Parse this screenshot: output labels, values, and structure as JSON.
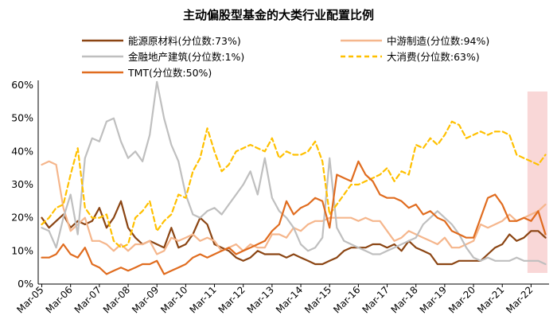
{
  "chart_data": {
    "type": "line",
    "title": "主动偏股型基金的大类行业配置比例",
    "xlabel": "",
    "ylabel": "",
    "ylim": [
      0,
      60
    ],
    "y_ticks": [
      "0%",
      "10%",
      "20%",
      "30%",
      "40%",
      "50%",
      "60%"
    ],
    "x_ticks": [
      "Mar-05",
      "Mar-06",
      "Mar-07",
      "Mar-08",
      "Mar-09",
      "Mar-10",
      "Mar-11",
      "Mar-12",
      "Mar-13",
      "Mar-14",
      "Mar-15",
      "Mar-16",
      "Mar-17",
      "Mar-18",
      "Mar-19",
      "Mar-20",
      "Mar-21",
      "Mar-22"
    ],
    "x_start": "2005-03",
    "x_step": "quarter",
    "grid": false,
    "legend_position": "top",
    "highlight": {
      "from_index": 68,
      "to_index": 70,
      "color": "#f9d7d7"
    },
    "series": [
      {
        "name": "能源原材料(分位数:73%)",
        "color": "#8b4513",
        "style": "solid",
        "values": [
          20,
          17,
          19,
          21,
          17,
          19,
          18,
          19,
          23,
          17,
          20,
          25,
          17,
          14,
          12,
          13,
          12,
          11,
          17,
          11,
          12,
          15,
          20,
          18,
          12,
          11,
          10,
          8,
          7,
          8,
          10,
          9,
          9,
          9,
          8,
          9,
          8,
          7,
          6,
          6,
          7,
          8,
          10,
          11,
          11,
          11,
          12,
          12,
          11,
          12,
          10,
          13,
          11,
          10,
          9,
          6,
          6,
          6,
          7,
          7,
          7,
          7,
          9,
          11,
          12,
          15,
          13,
          14,
          16,
          16,
          14
        ]
      },
      {
        "name": "中游制造(分位数:94%)",
        "color": "#f5b68c",
        "style": "solid",
        "values": [
          36,
          37,
          36,
          23,
          16,
          18,
          20,
          13,
          13,
          12,
          10,
          12,
          10,
          12,
          12,
          13,
          9,
          10,
          14,
          13,
          14,
          15,
          13,
          14,
          13,
          10,
          11,
          12,
          10,
          12,
          11,
          11,
          15,
          15,
          14,
          17,
          16,
          18,
          19,
          19,
          20,
          20,
          20,
          20,
          19,
          20,
          19,
          19,
          16,
          13,
          14,
          16,
          15,
          14,
          13,
          12,
          14,
          11,
          11,
          12,
          13,
          18,
          17,
          18,
          19,
          21,
          19,
          20,
          21,
          22,
          24
        ]
      },
      {
        "name": "金融地产建筑(分位数:1%)",
        "color": "#bfbfbf",
        "style": "solid",
        "values": [
          17,
          16,
          11,
          20,
          27,
          15,
          38,
          44,
          43,
          49,
          50,
          43,
          38,
          40,
          37,
          45,
          61,
          50,
          42,
          37,
          27,
          21,
          20,
          22,
          23,
          21,
          24,
          27,
          30,
          34,
          27,
          38,
          26,
          22,
          20,
          17,
          12,
          10,
          11,
          14,
          38,
          17,
          13,
          12,
          11,
          10,
          9,
          9,
          10,
          11,
          12,
          13,
          14,
          18,
          20,
          22,
          20,
          18,
          15,
          11,
          8,
          7,
          8,
          7,
          7,
          7,
          8,
          7,
          7,
          7,
          6
        ]
      },
      {
        "name": "大消费(分位数:63%)",
        "color": "#ffc000",
        "style": "dashed",
        "values": [
          18,
          20,
          23,
          24,
          33,
          41,
          23,
          20,
          20,
          21,
          13,
          11,
          12,
          20,
          22,
          25,
          16,
          19,
          21,
          27,
          26,
          34,
          38,
          47,
          40,
          34,
          36,
          40,
          41,
          42,
          41,
          40,
          44,
          38,
          40,
          39,
          39,
          40,
          43,
          37,
          21,
          24,
          27,
          30,
          30,
          31,
          32,
          33,
          35,
          31,
          34,
          33,
          42,
          41,
          44,
          42,
          45,
          49,
          48,
          44,
          45,
          46,
          45,
          46,
          46,
          45,
          39,
          38,
          37,
          36,
          39
        ]
      },
      {
        "name": "TMT(分位数:50%)",
        "color": "#e06c1f",
        "style": "solid",
        "values": [
          8,
          8,
          9,
          12,
          9,
          8,
          11,
          6,
          5,
          3,
          4,
          5,
          4,
          5,
          6,
          6,
          7,
          3,
          4,
          5,
          6,
          8,
          9,
          8,
          9,
          10,
          11,
          9,
          10,
          11,
          12,
          13,
          16,
          18,
          25,
          21,
          23,
          24,
          26,
          25,
          17,
          33,
          32,
          31,
          37,
          33,
          31,
          27,
          26,
          26,
          25,
          23,
          24,
          21,
          22,
          20,
          19,
          16,
          15,
          14,
          14,
          20,
          26,
          27,
          24,
          19,
          19,
          20,
          19,
          22,
          15
        ]
      }
    ]
  }
}
